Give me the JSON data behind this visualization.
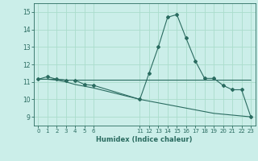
{
  "xlabel": "Humidex (Indice chaleur)",
  "bg_color": "#cbeee9",
  "grid_color": "#aaddcc",
  "line_color": "#2a6b60",
  "xlim": [
    -0.5,
    23.5
  ],
  "ylim": [
    8.5,
    15.5
  ],
  "yticks": [
    9,
    10,
    11,
    12,
    13,
    14,
    15
  ],
  "xticks": [
    0,
    1,
    2,
    3,
    4,
    5,
    6,
    11,
    12,
    13,
    14,
    15,
    16,
    17,
    18,
    19,
    20,
    21,
    22,
    23
  ],
  "series1_x": [
    0,
    1,
    2,
    3,
    4,
    5,
    6,
    11,
    12,
    13,
    14,
    15,
    16,
    17,
    18,
    19,
    20,
    21,
    22,
    23
  ],
  "series1_y": [
    11.15,
    11.3,
    11.15,
    11.1,
    11.1,
    10.85,
    10.8,
    10.0,
    11.5,
    13.0,
    14.7,
    14.85,
    13.5,
    12.2,
    11.2,
    11.2,
    10.8,
    10.55,
    10.55,
    9.0
  ],
  "series2_x": [
    0,
    1,
    2,
    3,
    4,
    5,
    6,
    11,
    12,
    13,
    14,
    15,
    16,
    17,
    18,
    19,
    20,
    21,
    22,
    23
  ],
  "series2_y": [
    11.15,
    11.15,
    11.15,
    11.1,
    11.1,
    11.1,
    11.1,
    11.1,
    11.1,
    11.1,
    11.1,
    11.1,
    11.1,
    11.1,
    11.1,
    11.1,
    11.1,
    11.1,
    11.1,
    11.1
  ],
  "series3_x": [
    0,
    1,
    2,
    3,
    4,
    5,
    6,
    11,
    12,
    13,
    14,
    15,
    16,
    17,
    18,
    19,
    20,
    21,
    22,
    23
  ],
  "series3_y": [
    11.15,
    11.15,
    11.1,
    11.0,
    10.85,
    10.75,
    10.65,
    10.0,
    9.9,
    9.8,
    9.7,
    9.6,
    9.5,
    9.4,
    9.3,
    9.2,
    9.15,
    9.1,
    9.05,
    9.0
  ],
  "figsize": [
    3.2,
    2.0
  ],
  "dpi": 100
}
